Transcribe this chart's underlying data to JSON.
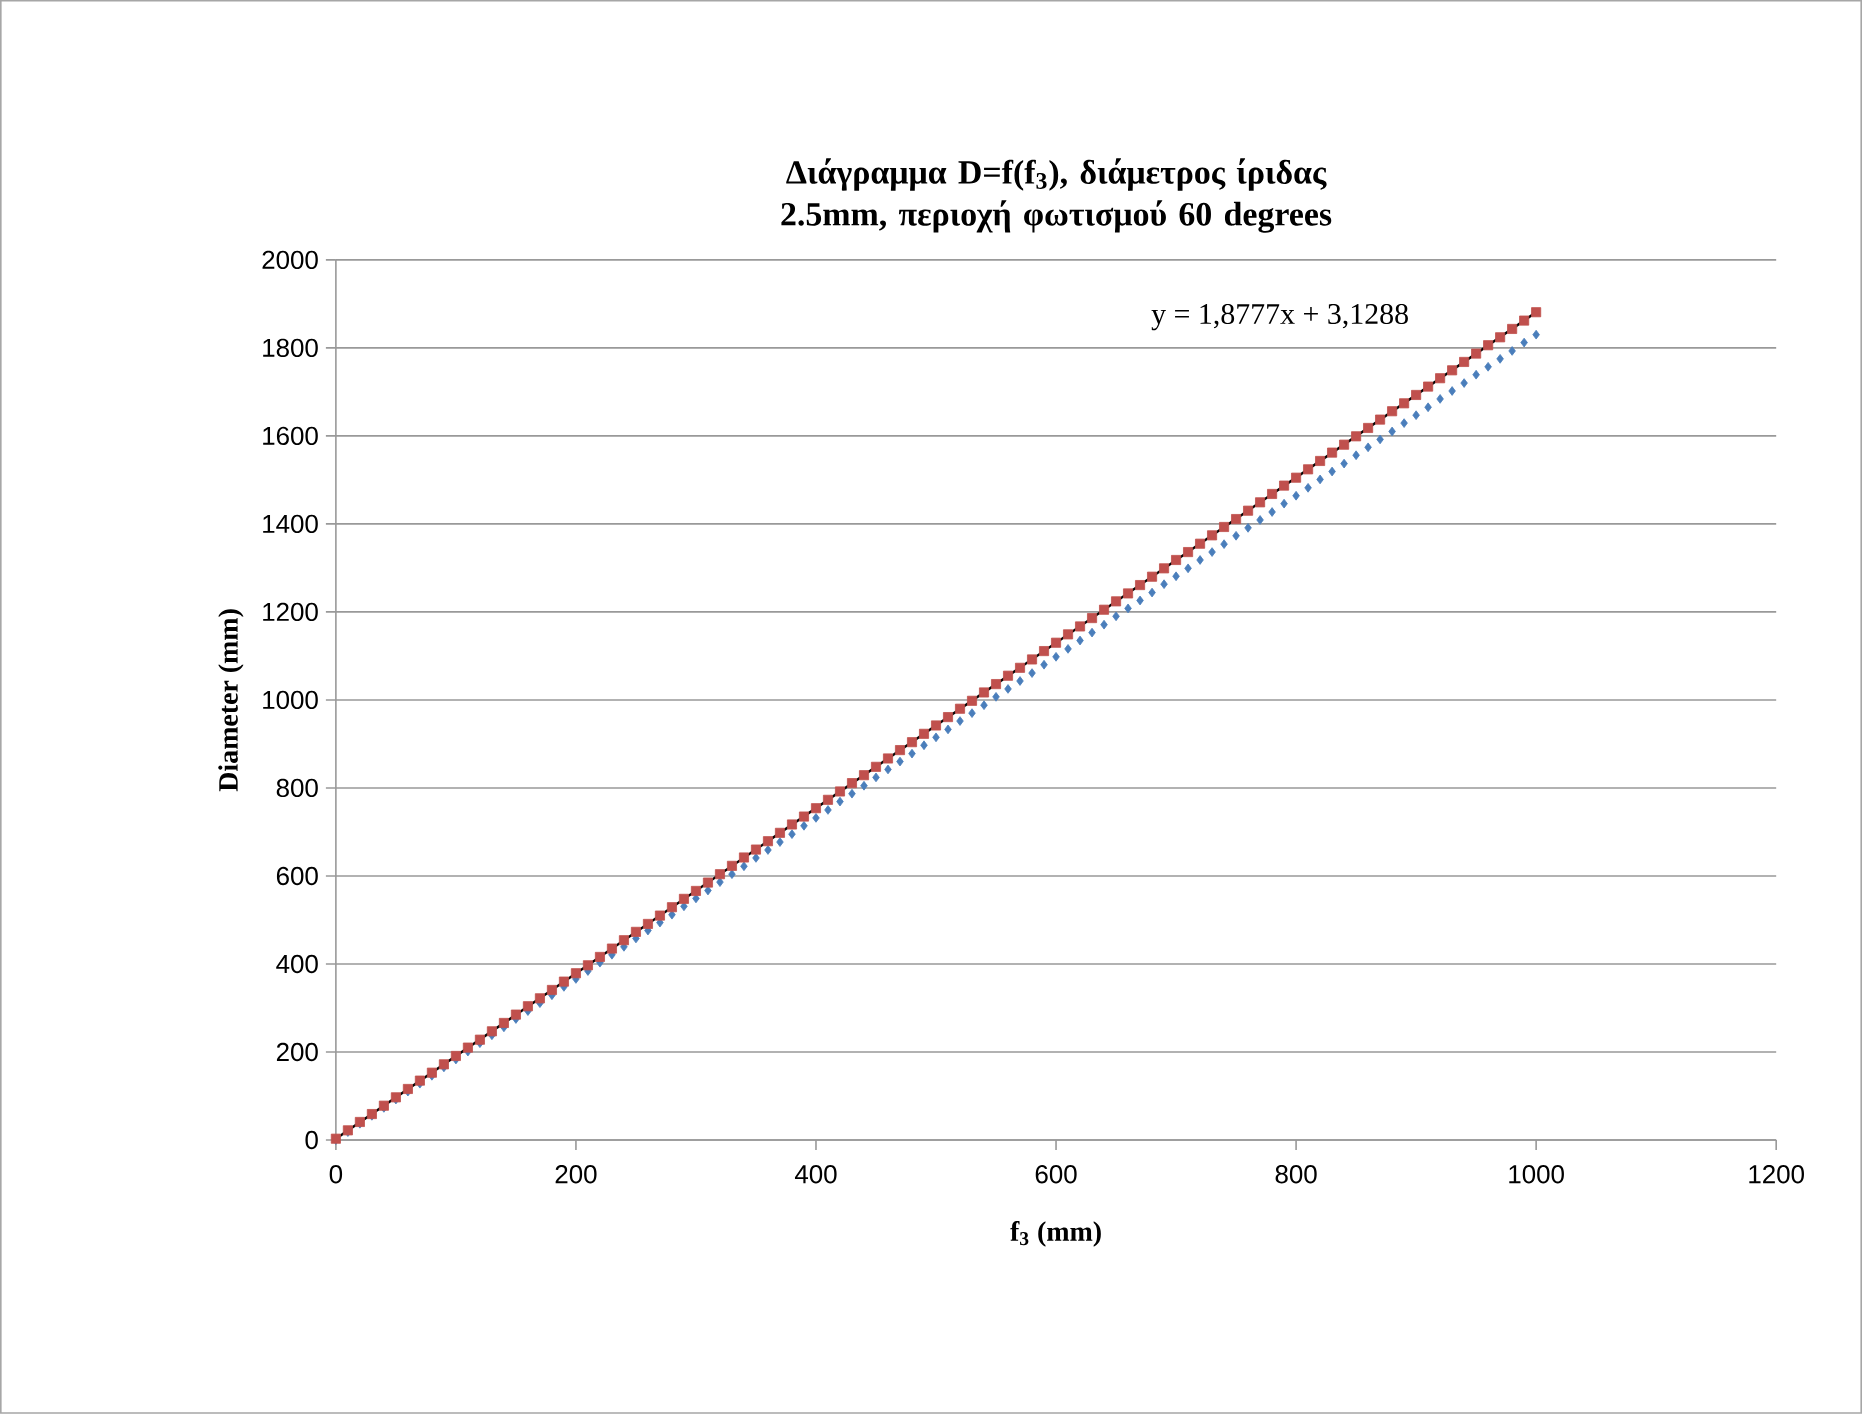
{
  "chart_data": {
    "type": "scatter",
    "title": "Διάγραμμα D=f(f$_{3}$), διάμετρος ίριδας 2.5mm, περιοχή φωτισμού 60 degrees",
    "xlabel": "f$_{3}$ (mm)",
    "ylabel": "Diameter (mm)",
    "x": [
      0,
      10,
      20,
      30,
      40,
      50,
      60,
      70,
      80,
      90,
      100,
      110,
      120,
      130,
      140,
      150,
      160,
      170,
      180,
      190,
      200,
      210,
      220,
      230,
      240,
      250,
      260,
      270,
      280,
      290,
      300,
      310,
      320,
      330,
      340,
      350,
      360,
      370,
      380,
      390,
      400,
      410,
      420,
      430,
      440,
      450,
      460,
      470,
      480,
      490,
      500,
      510,
      520,
      530,
      540,
      550,
      560,
      570,
      580,
      590,
      600,
      610,
      620,
      630,
      640,
      650,
      660,
      670,
      680,
      690,
      700,
      710,
      720,
      730,
      740,
      750,
      760,
      770,
      780,
      790,
      800,
      810,
      820,
      830,
      840,
      850,
      860,
      870,
      880,
      890,
      900,
      910,
      920,
      930,
      940,
      950,
      960,
      970,
      980,
      990,
      1000
    ],
    "series": [
      {
        "color": "#4a7ebb",
        "marker": "diamond",
        "values": [
          0,
          18,
          37,
          55,
          73,
          92,
          110,
          128,
          146,
          165,
          183,
          201,
          220,
          238,
          256,
          275,
          293,
          311,
          329,
          348,
          366,
          384,
          403,
          421,
          439,
          458,
          476,
          494,
          512,
          531,
          549,
          567,
          586,
          604,
          622,
          641,
          659,
          677,
          695,
          714,
          732,
          750,
          769,
          787,
          805,
          824,
          842,
          860,
          878,
          897,
          915,
          933,
          952,
          970,
          988,
          1007,
          1025,
          1043,
          1061,
          1080,
          1098,
          1116,
          1135,
          1153,
          1171,
          1190,
          1208,
          1226,
          1244,
          1263,
          1281,
          1299,
          1318,
          1336,
          1354,
          1373,
          1391,
          1409,
          1427,
          1446,
          1464,
          1482,
          1501,
          1519,
          1537,
          1556,
          1574,
          1592,
          1610,
          1629,
          1647,
          1665,
          1684,
          1702,
          1720,
          1739,
          1757,
          1775,
          1793,
          1812,
          1830
        ]
      },
      {
        "color": "#c0504d",
        "marker": "square",
        "values": [
          3,
          22,
          41,
          59,
          78,
          97,
          116,
          135,
          153,
          172,
          191,
          210,
          228,
          247,
          266,
          285,
          304,
          322,
          341,
          360,
          379,
          397,
          416,
          435,
          454,
          473,
          491,
          510,
          529,
          548,
          566,
          585,
          604,
          623,
          642,
          660,
          679,
          698,
          717,
          735,
          754,
          773,
          792,
          811,
          829,
          848,
          867,
          886,
          904,
          923,
          942,
          961,
          980,
          998,
          1017,
          1036,
          1055,
          1073,
          1092,
          1111,
          1130,
          1149,
          1167,
          1186,
          1205,
          1224,
          1242,
          1261,
          1280,
          1299,
          1318,
          1336,
          1355,
          1374,
          1393,
          1411,
          1430,
          1449,
          1468,
          1487,
          1505,
          1524,
          1543,
          1562,
          1580,
          1599,
          1618,
          1637,
          1656,
          1674,
          1693,
          1712,
          1731,
          1749,
          1768,
          1787,
          1806,
          1824,
          1843,
          1862,
          1881
        ]
      },
      {
        "type": "line",
        "color": "#000000",
        "marker": "none",
        "x": [
          0,
          1000
        ],
        "values": [
          3,
          1881
        ]
      }
    ],
    "annotations": [
      "y = 1,8777x + 3,1288"
    ],
    "xlim": [
      0,
      1200
    ],
    "xticks": [
      0,
      200,
      400,
      600,
      800,
      1000,
      1200
    ],
    "ylim": [
      0,
      2000
    ],
    "yticks": [
      0,
      200,
      400,
      600,
      800,
      1000,
      1200,
      1400,
      1600,
      1800,
      2000
    ],
    "grid": "y"
  }
}
